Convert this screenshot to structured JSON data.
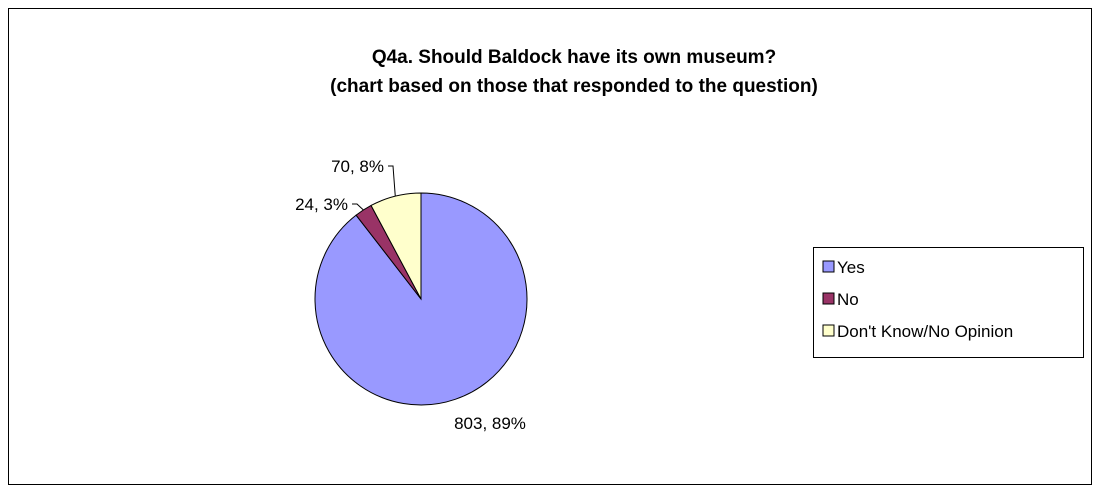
{
  "chart_data": {
    "type": "pie",
    "title": "Q4a. Should Baldock have its own museum?",
    "subtitle": "(chart based on those that responded to the question)",
    "legend_position": "right",
    "slices": [
      {
        "label": "Yes",
        "value": 803,
        "percent": "89%",
        "data_label": "803, 89%",
        "color": "#9999FF"
      },
      {
        "label": "No",
        "value": 24,
        "percent": "3%",
        "data_label": "24, 3%",
        "color": "#993366"
      },
      {
        "label": "Don't Know/No Opinion",
        "value": 70,
        "percent": "8%",
        "data_label": "70, 8%",
        "color": "#FFFFCC"
      }
    ]
  }
}
